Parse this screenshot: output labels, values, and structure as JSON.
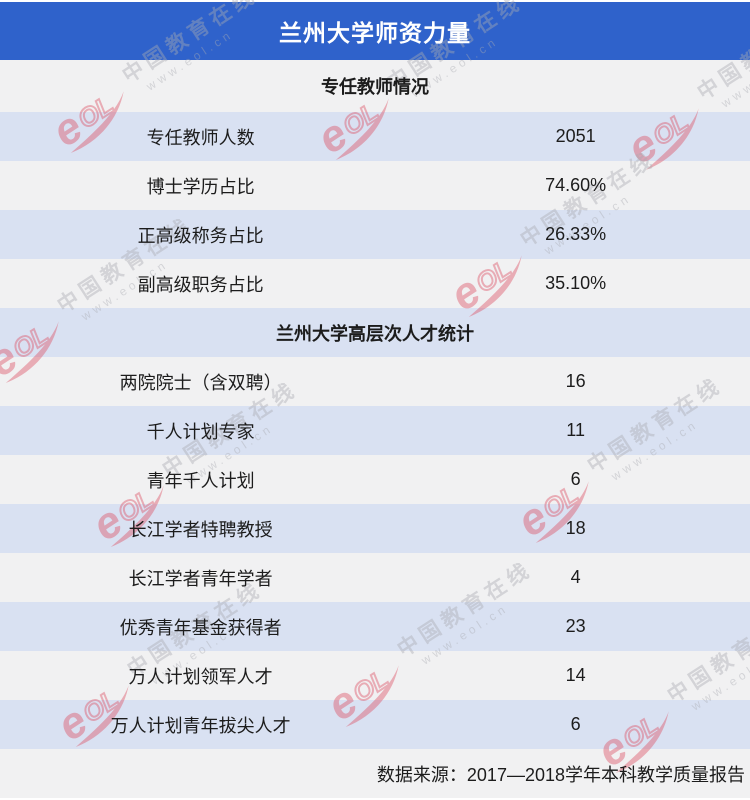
{
  "page": {
    "title": "兰州大学师资力量",
    "footer": "数据来源：2017—2018学年本科教学质量报告"
  },
  "colors": {
    "header_bg": "#2f62cb",
    "row_blue": "#d9e1f2",
    "row_gray": "#f1f1f2",
    "title_text": "#ffffff",
    "body_text": "#1c1c1c",
    "watermark_red": "#dd4f63",
    "watermark_gray": "#aaacb2"
  },
  "sections": [
    {
      "header": "专任教师情况",
      "rows": [
        {
          "label": "专任教师人数",
          "value": "2051"
        },
        {
          "label": "博士学历占比",
          "value": "74.60%"
        },
        {
          "label": "正高级称务占比",
          "value": "26.33%"
        },
        {
          "label": "副高级职务占比",
          "value": "35.10%"
        }
      ]
    },
    {
      "header": "兰州大学高层次人才统计",
      "rows": [
        {
          "label": "两院院士（含双聘）",
          "value": "16"
        },
        {
          "label": "千人计划专家",
          "value": "11"
        },
        {
          "label": "青年千人计划",
          "value": "6"
        },
        {
          "label": "长江学者特聘教授",
          "value": "18"
        },
        {
          "label": "长江学者青年学者",
          "value": "4"
        },
        {
          "label": "优秀青年基金获得者",
          "value": "23"
        },
        {
          "label": "万人计划领军人才",
          "value": "14"
        },
        {
          "label": "万人计划青年拔尖人才",
          "value": "6"
        }
      ]
    }
  ],
  "watermark": {
    "logo_icon": "eol-logo-icon",
    "logo_text": "eOL",
    "line1": "中国教育在线",
    "line2": "www.eol.cn"
  },
  "chart_data": {
    "type": "table",
    "title": "兰州大学师资力量",
    "sections": [
      {
        "header": "专任教师情况",
        "rows": [
          [
            "专任教师人数",
            "2051"
          ],
          [
            "博士学历占比",
            "74.60%"
          ],
          [
            "正高级称务占比",
            "26.33%"
          ],
          [
            "副高级职务占比",
            "35.10%"
          ]
        ]
      },
      {
        "header": "兰州大学高层次人才统计",
        "rows": [
          [
            "两院院士（含双聘）",
            "16"
          ],
          [
            "千人计划专家",
            "11"
          ],
          [
            "青年千人计划",
            "6"
          ],
          [
            "长江学者特聘教授",
            "18"
          ],
          [
            "长江学者青年学者",
            "4"
          ],
          [
            "优秀青年基金获得者",
            "23"
          ],
          [
            "万人计划领军人才",
            "14"
          ],
          [
            "万人计划青年拔尖人才",
            "6"
          ]
        ]
      }
    ],
    "source_note": "数据来源：2017—2018学年本科教学质量报告"
  }
}
